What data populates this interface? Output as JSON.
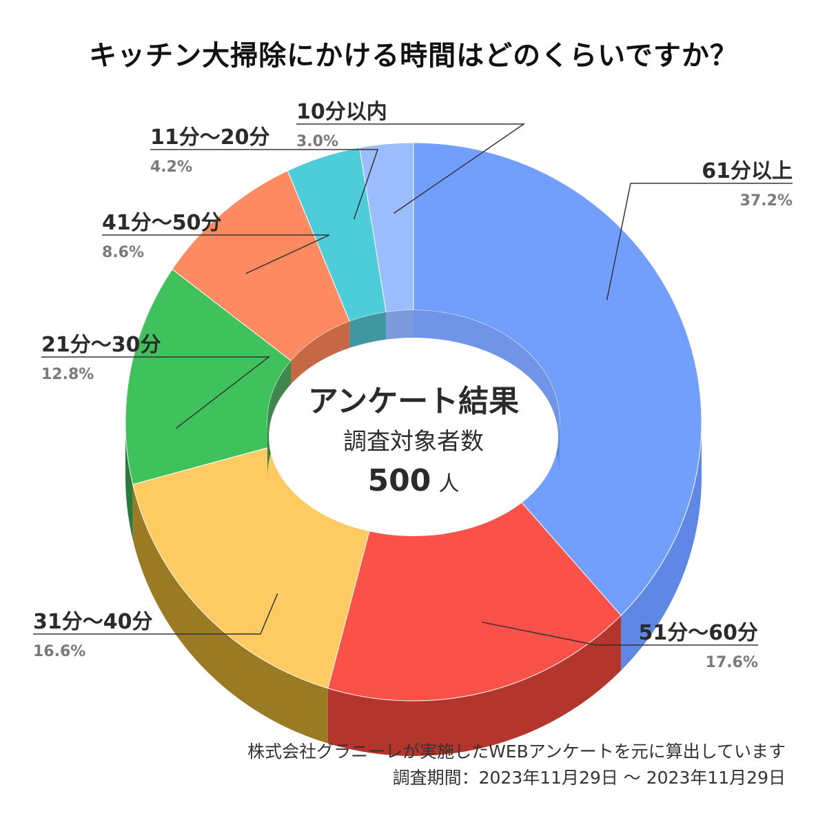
{
  "chart_data": {
    "type": "pie",
    "title": "キッチン大掃除にかける時間はどのくらいですか？",
    "categories": [
      "61分以上",
      "51分〜60分",
      "31分〜40分",
      "21分〜30分",
      "41分〜50分",
      "11分〜20分",
      "10分以内"
    ],
    "values": [
      37.2,
      17.6,
      16.6,
      12.8,
      8.6,
      4.2,
      3.0
    ],
    "pct_labels": [
      "37.2%",
      "17.6%",
      "16.6%",
      "12.8%",
      "8.6%",
      "4.2%",
      "3.0%"
    ],
    "colors": [
      "#739ffc",
      "#fa5249",
      "#fdcb61",
      "#3fc15c",
      "#fd8a60",
      "#4dcdd9",
      "#9bbcfd"
    ],
    "side_colors": [
      "#5f88e6",
      "#b3352c",
      "#9a7a22",
      "#2a7a3c",
      "#c0582f",
      "#2a8d97",
      "#6e8fd8"
    ],
    "donut": true
  },
  "center": {
    "title": "アンケート結果",
    "subtitle": "調査対象者数",
    "count": "500",
    "unit": "人"
  },
  "footer": {
    "line1": "株式会社グラニーレが実施したWEBアンケートを元に算出しています",
    "line2": "調査期間：2023年11月29日 〜 2023年11月29日"
  }
}
